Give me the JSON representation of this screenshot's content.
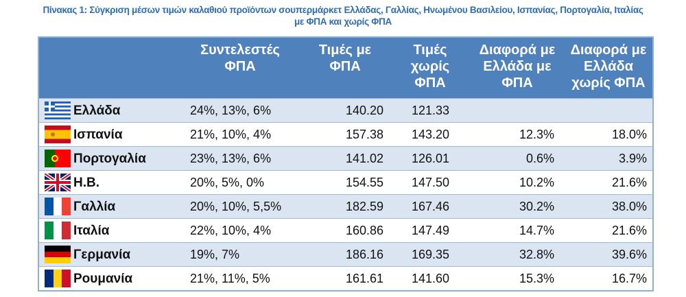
{
  "caption": {
    "line1": "Πίνακας 1: Σύγκριση μέσων τιμών καλαθιού προϊόντων σουπερμάρκετ Ελλάδας, Γαλλίας, Ηνωμένου Βασιλείου, Ισπανίας, Πορτογαλία, Ιταλίας",
    "line2": "με ΦΠΑ και χωρίς ΦΠΑ"
  },
  "headers": [
    "Συντελεστές ΦΠΑ",
    "Τιμές με ΦΠΑ",
    "Τιμές χωρίς ΦΠΑ",
    "Διαφορά με Ελλάδα με ΦΠΑ",
    "Διαφορά με Ελλάδα χωρίς ΦΠΑ"
  ],
  "rows": [
    {
      "flag": "greece-flag",
      "country": "Ελλάδα",
      "vat": "24%, 13%, 6%",
      "with_vat": "140.20",
      "without_vat": "121.33",
      "diff_vat": "",
      "diff_novat": ""
    },
    {
      "flag": "spain-flag",
      "country": "Ισπανία",
      "vat": "21%, 10%, 4%",
      "with_vat": "157.38",
      "without_vat": "143.20",
      "diff_vat": "12.3%",
      "diff_novat": "18.0%"
    },
    {
      "flag": "portugal-flag",
      "country": "Πορτογαλία",
      "vat": "23%, 13%, 6%",
      "with_vat": "141.02",
      "without_vat": "126.01",
      "diff_vat": "0.6%",
      "diff_novat": "3.9%"
    },
    {
      "flag": "uk-flag",
      "country": "Η.Β.",
      "vat": "20%, 5%, 0%",
      "with_vat": "154.55",
      "without_vat": "147.50",
      "diff_vat": "10.2%",
      "diff_novat": "21.6%"
    },
    {
      "flag": "france-flag",
      "country": "Γαλλία",
      "vat": "20%, 10%, 5,5%",
      "with_vat": "182.59",
      "without_vat": "167.46",
      "diff_vat": "30.2%",
      "diff_novat": "38.0%"
    },
    {
      "flag": "italy-flag",
      "country": "Ιταλία",
      "vat": "22%, 10%, 4%",
      "with_vat": "160.86",
      "without_vat": "147.49",
      "diff_vat": "14.7%",
      "diff_novat": "21.6%"
    },
    {
      "flag": "germany-flag",
      "country": "Γερμανία",
      "vat": "19%, 7%",
      "with_vat": "186.16",
      "without_vat": "169.35",
      "diff_vat": "32.8%",
      "diff_novat": "39.6%"
    },
    {
      "flag": "romania-flag",
      "country": "Ρουμανία",
      "vat": "21%, 11%, 5%",
      "with_vat": "161.61",
      "without_vat": "141.60",
      "diff_vat": "15.3%",
      "diff_novat": "16.7%"
    }
  ],
  "colors": {
    "header": "#4f81bd",
    "band": "#dbe5f1",
    "caption": "#2e6db4"
  }
}
